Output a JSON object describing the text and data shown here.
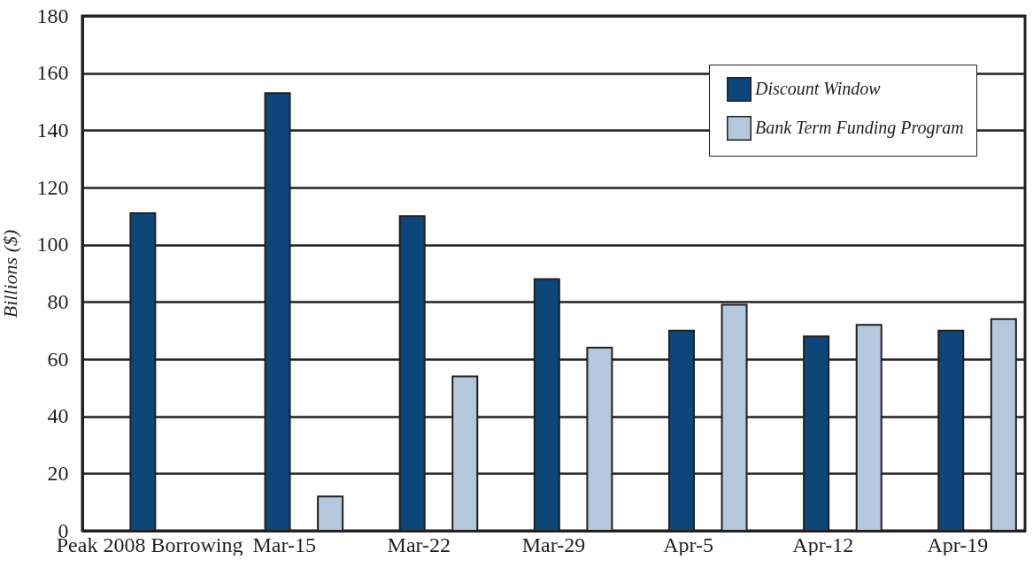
{
  "chart_data": {
    "type": "bar",
    "ylabel": "Billions ($)",
    "categories": [
      "Peak 2008\nBorrowing",
      "Mar-15",
      "Mar-22",
      "Mar-29",
      "Apr-5",
      "Apr-12",
      "Apr-19"
    ],
    "series": [
      {
        "name": "Discount Window",
        "color": "#0d4779",
        "values": [
          111,
          153,
          110,
          88,
          70,
          68,
          70
        ]
      },
      {
        "name": "Bank Term Funding Program",
        "color": "#b4c9de",
        "values": [
          null,
          12,
          54,
          64,
          79,
          72,
          74
        ]
      }
    ],
    "ylim": [
      0,
      180
    ],
    "yticks": [
      0,
      20,
      40,
      60,
      80,
      100,
      120,
      140,
      160,
      180
    ],
    "grid": "y",
    "legend": "top right"
  }
}
